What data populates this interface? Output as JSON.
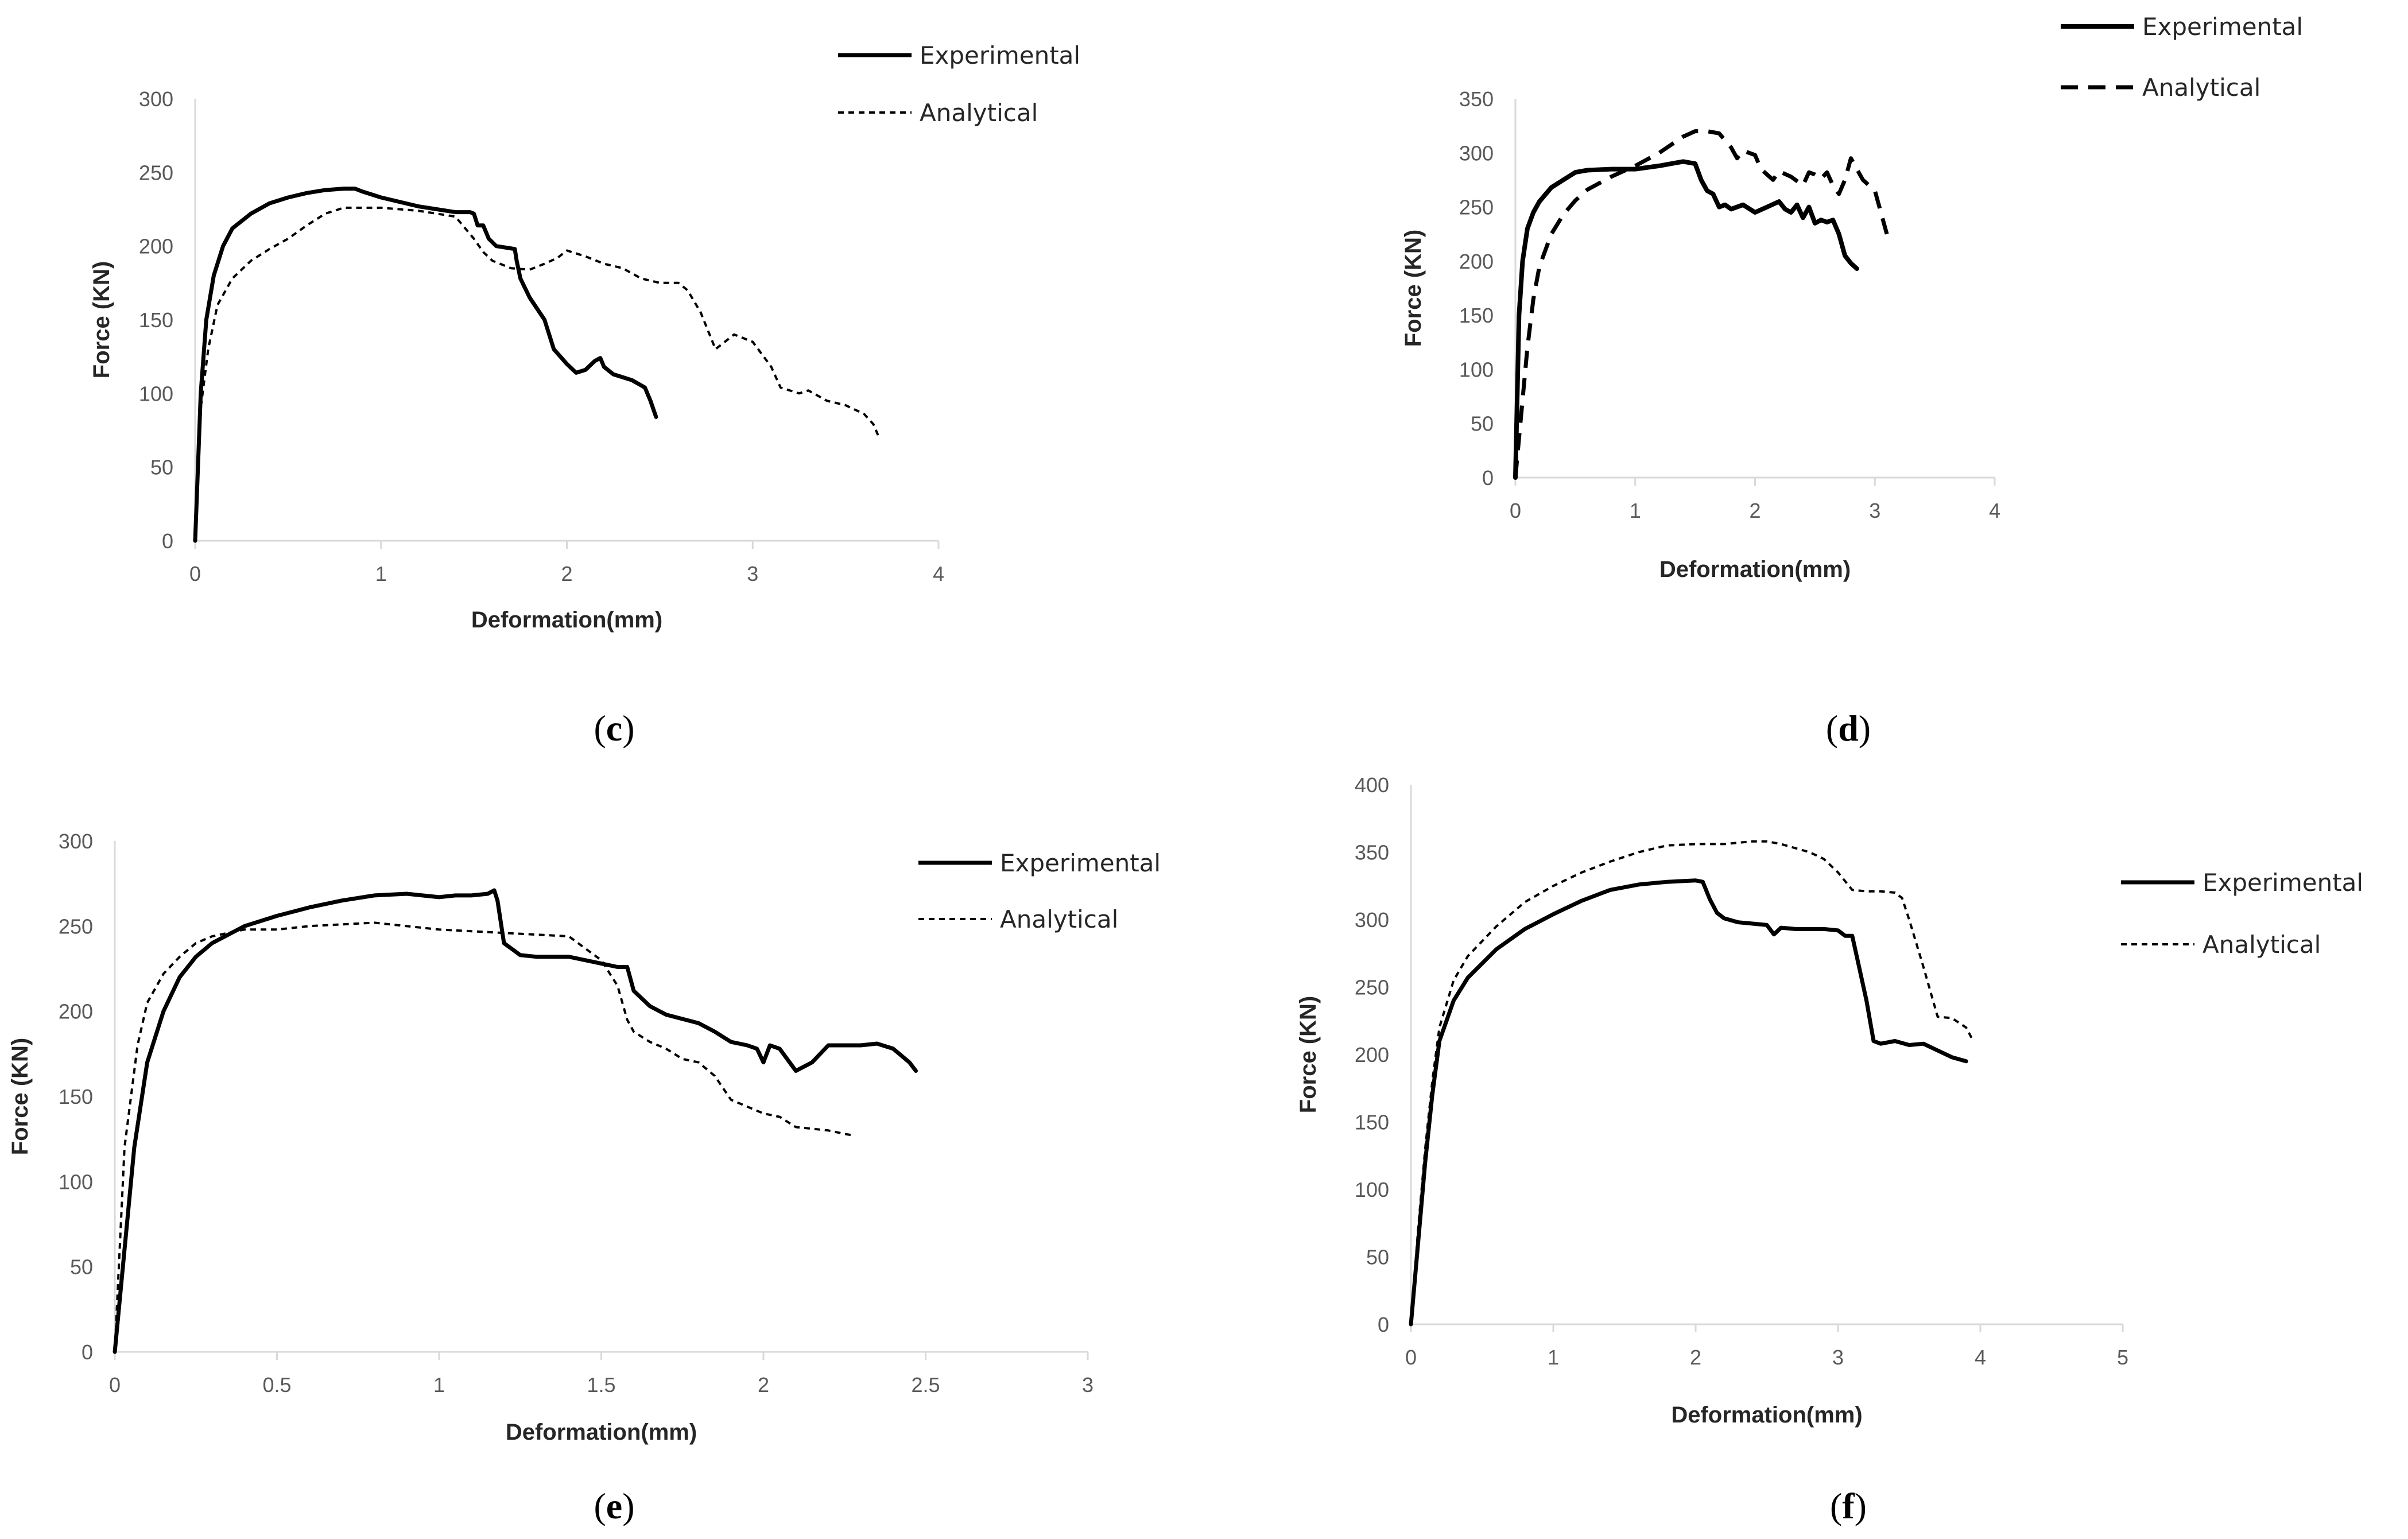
{
  "chart_data": [
    {
      "type": "line",
      "panel_label": "c",
      "xlabel": "Deformation(mm)",
      "ylabel": "Force (KN)",
      "xlim": [
        0,
        4
      ],
      "ylim": [
        0,
        300
      ],
      "xticks": [
        "0",
        "1",
        "2",
        "3",
        "4"
      ],
      "yticks": [
        "0",
        "50",
        "100",
        "150",
        "200",
        "250",
        "300"
      ],
      "legend_placement": "top-right",
      "series": [
        {
          "name": "Experimental",
          "style": "solid",
          "x": [
            0,
            0.03,
            0.06,
            0.1,
            0.15,
            0.2,
            0.3,
            0.4,
            0.5,
            0.6,
            0.7,
            0.8,
            0.86,
            0.9,
            1.0,
            1.2,
            1.4,
            1.48,
            1.5,
            1.52,
            1.55,
            1.58,
            1.62,
            1.72,
            1.73,
            1.75,
            1.8,
            1.88,
            1.93,
            2.0,
            2.05,
            2.1,
            2.15,
            2.18,
            2.2,
            2.25,
            2.3,
            2.35,
            2.42,
            2.45,
            2.48
          ],
          "y": [
            0,
            100,
            150,
            180,
            200,
            212,
            222,
            229,
            233,
            236,
            238,
            239,
            239,
            237,
            233,
            227,
            223,
            223,
            222,
            214,
            214,
            205,
            200,
            198,
            190,
            178,
            165,
            150,
            130,
            120,
            114,
            116,
            122,
            124,
            118,
            113,
            111,
            109,
            104,
            95,
            84
          ]
        },
        {
          "name": "Analytical",
          "style": "dashed",
          "x": [
            0,
            0.03,
            0.07,
            0.12,
            0.2,
            0.3,
            0.4,
            0.5,
            0.6,
            0.7,
            0.8,
            1.0,
            1.2,
            1.4,
            1.5,
            1.55,
            1.6,
            1.7,
            1.8,
            1.88,
            1.95,
            2.0,
            2.1,
            2.2,
            2.3,
            2.4,
            2.5,
            2.6,
            2.65,
            2.72,
            2.8,
            2.85,
            2.9,
            3.0,
            3.1,
            3.15,
            3.25,
            3.3,
            3.4,
            3.5,
            3.6,
            3.65,
            3.68
          ],
          "y": [
            0,
            90,
            130,
            160,
            178,
            190,
            198,
            205,
            214,
            222,
            226,
            226,
            224,
            220,
            205,
            196,
            190,
            185,
            184,
            188,
            192,
            197,
            193,
            188,
            185,
            178,
            175,
            175,
            170,
            155,
            130,
            135,
            140,
            135,
            118,
            104,
            100,
            102,
            95,
            92,
            86,
            79,
            70
          ]
        }
      ]
    },
    {
      "type": "line",
      "panel_label": "d",
      "xlabel": "Deformation(mm)",
      "ylabel": "Force (KN)",
      "xlim": [
        0,
        4
      ],
      "ylim": [
        0,
        350
      ],
      "xticks": [
        "0",
        "1",
        "2",
        "3",
        "4"
      ],
      "yticks": [
        "0",
        "50",
        "100",
        "150",
        "200",
        "250",
        "300",
        "350"
      ],
      "legend_placement": "top-right",
      "series": [
        {
          "name": "Experimental",
          "style": "solid",
          "x": [
            0,
            0.03,
            0.06,
            0.1,
            0.15,
            0.2,
            0.3,
            0.4,
            0.5,
            0.6,
            0.8,
            1.0,
            1.2,
            1.4,
            1.5,
            1.55,
            1.6,
            1.65,
            1.7,
            1.75,
            1.8,
            1.9,
            2.0,
            2.1,
            2.2,
            2.25,
            2.3,
            2.35,
            2.4,
            2.45,
            2.5,
            2.55,
            2.6,
            2.65,
            2.7,
            2.75,
            2.8,
            2.85
          ],
          "y": [
            0,
            150,
            200,
            230,
            245,
            255,
            268,
            275,
            282,
            284,
            285,
            285,
            288,
            292,
            290,
            275,
            265,
            262,
            250,
            252,
            248,
            252,
            245,
            250,
            255,
            248,
            245,
            252,
            240,
            250,
            235,
            238,
            236,
            238,
            225,
            205,
            198,
            193
          ]
        },
        {
          "name": "Analytical",
          "style": "dashed",
          "x": [
            0,
            0.05,
            0.1,
            0.15,
            0.2,
            0.3,
            0.4,
            0.5,
            0.6,
            0.8,
            1.0,
            1.2,
            1.4,
            1.5,
            1.6,
            1.7,
            1.8,
            1.85,
            1.9,
            2.0,
            2.05,
            2.1,
            2.15,
            2.2,
            2.3,
            2.4,
            2.45,
            2.5,
            2.55,
            2.6,
            2.65,
            2.7,
            2.75,
            2.8,
            2.85,
            2.9,
            3.0,
            3.1
          ],
          "y": [
            0,
            60,
            120,
            165,
            195,
            225,
            243,
            256,
            266,
            278,
            288,
            300,
            315,
            320,
            320,
            318,
            305,
            295,
            302,
            298,
            285,
            280,
            275,
            283,
            278,
            270,
            282,
            280,
            276,
            282,
            270,
            262,
            275,
            295,
            285,
            275,
            265,
            225
          ]
        }
      ]
    },
    {
      "type": "line",
      "panel_label": "e",
      "xlabel": "Deformation(mm)",
      "ylabel": "Force (KN)",
      "xlim": [
        0,
        3
      ],
      "ylim": [
        0,
        300
      ],
      "xticks": [
        "0",
        "0.5",
        "1",
        "1.5",
        "2",
        "2.5",
        "3"
      ],
      "yticks": [
        "0",
        "50",
        "100",
        "150",
        "200",
        "250",
        "300"
      ],
      "legend_placement": "top-right",
      "series": [
        {
          "name": "Experimental",
          "style": "solid",
          "x": [
            0,
            0.03,
            0.06,
            0.1,
            0.15,
            0.2,
            0.25,
            0.3,
            0.4,
            0.5,
            0.6,
            0.7,
            0.8,
            0.9,
            1.0,
            1.05,
            1.1,
            1.15,
            1.17,
            1.18,
            1.2,
            1.25,
            1.3,
            1.4,
            1.5,
            1.55,
            1.58,
            1.6,
            1.65,
            1.7,
            1.8,
            1.85,
            1.9,
            1.95,
            1.98,
            2.0,
            2.02,
            2.05,
            2.1,
            2.15,
            2.2,
            2.3,
            2.35,
            2.4,
            2.45,
            2.47
          ],
          "y": [
            0,
            60,
            120,
            170,
            200,
            220,
            232,
            240,
            250,
            256,
            261,
            265,
            268,
            269,
            267,
            268,
            268,
            269,
            271,
            265,
            240,
            233,
            232,
            232,
            228,
            226,
            226,
            212,
            203,
            198,
            193,
            188,
            182,
            180,
            178,
            170,
            180,
            178,
            165,
            170,
            180,
            180,
            181,
            178,
            170,
            165
          ]
        },
        {
          "name": "Analytical",
          "style": "dashed",
          "x": [
            0,
            0.03,
            0.07,
            0.1,
            0.15,
            0.2,
            0.25,
            0.3,
            0.4,
            0.5,
            0.6,
            0.8,
            1.0,
            1.2,
            1.4,
            1.5,
            1.55,
            1.58,
            1.6,
            1.65,
            1.7,
            1.75,
            1.8,
            1.85,
            1.9,
            2.0,
            2.05,
            2.1,
            2.2,
            2.25,
            2.28
          ],
          "y": [
            0,
            120,
            180,
            205,
            222,
            232,
            240,
            244,
            248,
            248,
            250,
            252,
            248,
            246,
            244,
            230,
            215,
            195,
            188,
            182,
            178,
            172,
            170,
            162,
            148,
            140,
            138,
            132,
            130,
            128,
            127
          ]
        }
      ]
    },
    {
      "type": "line",
      "panel_label": "f",
      "xlabel": "Deformation(mm)",
      "ylabel": "Force (KN)",
      "xlim": [
        0,
        5
      ],
      "ylim": [
        0,
        400
      ],
      "xticks": [
        "0",
        "1",
        "2",
        "3",
        "4",
        "5"
      ],
      "yticks": [
        "0",
        "50",
        "100",
        "150",
        "200",
        "250",
        "300",
        "350",
        "400"
      ],
      "legend_placement": "right",
      "series": [
        {
          "name": "Experimental",
          "style": "solid",
          "x": [
            0,
            0.05,
            0.1,
            0.15,
            0.2,
            0.3,
            0.4,
            0.6,
            0.8,
            1.0,
            1.2,
            1.4,
            1.6,
            1.8,
            2.0,
            2.05,
            2.1,
            2.15,
            2.2,
            2.3,
            2.4,
            2.5,
            2.55,
            2.6,
            2.7,
            2.8,
            2.9,
            3.0,
            3.05,
            3.1,
            3.2,
            3.25,
            3.3,
            3.4,
            3.5,
            3.6,
            3.7,
            3.8,
            3.9
          ],
          "y": [
            0,
            60,
            120,
            170,
            210,
            240,
            257,
            278,
            293,
            304,
            314,
            322,
            326,
            328,
            329,
            328,
            315,
            305,
            301,
            298,
            297,
            296,
            289,
            294,
            293,
            293,
            293,
            292,
            288,
            288,
            240,
            210,
            208,
            210,
            207,
            208,
            203,
            198,
            195
          ]
        },
        {
          "name": "Analytical",
          "style": "dashed",
          "x": [
            0,
            0.05,
            0.1,
            0.15,
            0.2,
            0.3,
            0.4,
            0.6,
            0.8,
            1.0,
            1.2,
            1.4,
            1.6,
            1.8,
            2.0,
            2.2,
            2.4,
            2.5,
            2.6,
            2.7,
            2.8,
            2.9,
            3.0,
            3.1,
            3.2,
            3.3,
            3.4,
            3.45,
            3.5,
            3.6,
            3.7,
            3.8,
            3.9,
            3.95
          ],
          "y": [
            0,
            70,
            130,
            180,
            220,
            255,
            273,
            295,
            313,
            325,
            335,
            343,
            350,
            355,
            356,
            356,
            358,
            358,
            356,
            353,
            350,
            345,
            335,
            322,
            321,
            321,
            320,
            316,
            300,
            265,
            228,
            227,
            220,
            210
          ]
        }
      ]
    }
  ]
}
